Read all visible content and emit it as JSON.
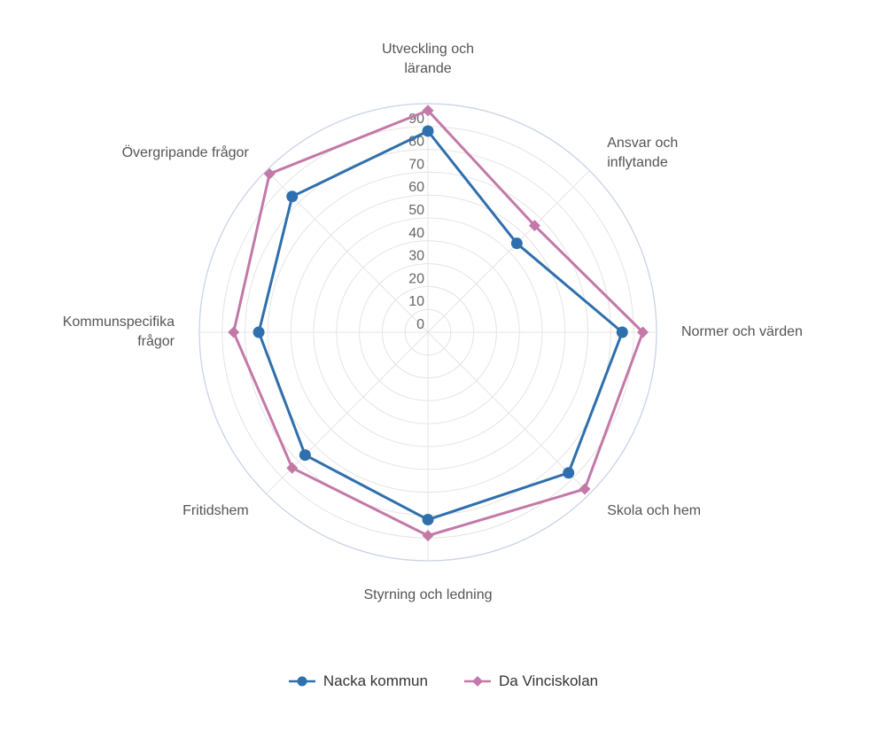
{
  "chart_data": {
    "type": "radar",
    "categories": [
      "Utveckling och lärande",
      "Ansvar och inflytande",
      "Normer och värden",
      "Skola och hem",
      "Styrning och ledning",
      "Fritidshem",
      "Kommunspecifika frågor",
      "Övergripande frågor"
    ],
    "category_lines": [
      [
        "Utveckling och",
        "lärande"
      ],
      [
        "Ansvar och",
        "inflytande"
      ],
      [
        "Normer och värden"
      ],
      [
        "Skola och hem"
      ],
      [
        "Styrning och ledning"
      ],
      [
        "Fritidshem"
      ],
      [
        "Kommunspecifika",
        "frågor"
      ],
      [
        "Övergripande frågor"
      ]
    ],
    "series": [
      {
        "name": "Nacka kommun",
        "color": "#2f6fad",
        "marker": "circle",
        "values": [
          88,
          55,
          85,
          87,
          82,
          76,
          74,
          84
        ]
      },
      {
        "name": "Da Vinciskolan",
        "color": "#c379a8",
        "marker": "diamond",
        "values": [
          97,
          66,
          94,
          97,
          89,
          84,
          85,
          98
        ]
      }
    ],
    "ticks": [
      "0",
      "10",
      "20",
      "30",
      "40",
      "50",
      "60",
      "70",
      "80",
      "90"
    ],
    "rmax": 100,
    "grid": true,
    "legend_position": "bottom"
  }
}
